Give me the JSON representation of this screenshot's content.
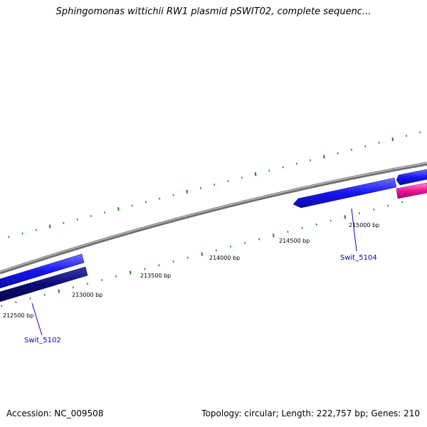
{
  "title": "Sphingomonas wittichii RW1 plasmid pSWIT02, complete sequenc...",
  "footer": {
    "accession": "Accession: NC_009508",
    "summary": "Topology: circular; Length: 222,757 bp; Genes: 210"
  },
  "ruler_labels": [
    "212500 bp",
    "213000 bp",
    "213500 bp",
    "214000 bp",
    "214500 bp",
    "215000 bp"
  ],
  "gene_labels": [
    "Swit_5102",
    "Swit_5104"
  ],
  "colors": {
    "backbone": "#8a8a8a",
    "tick": "#1a8a1a",
    "gene_forward": "#1010ee",
    "gene_reverse": "#0b0b78",
    "gene_other": "#ee1199",
    "gene_label": "#0000cc"
  }
}
